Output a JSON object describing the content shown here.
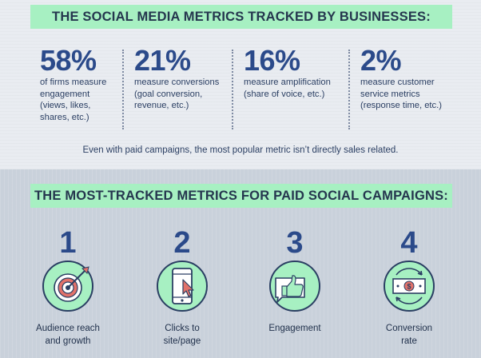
{
  "section1": {
    "title": "THE SOCIAL MEDIA METRICS TRACKED BY BUSINESSES:",
    "stats": [
      {
        "percent": "58%",
        "line1": "of firms measure",
        "line2": "engagement",
        "line3": "(views, likes,",
        "line4": "shares, etc.)"
      },
      {
        "percent": "21%",
        "line1": "measure conversions",
        "line2": "(goal conversion,",
        "line3": "revenue, etc.)"
      },
      {
        "percent": "16%",
        "line1": "measure amplification",
        "line2": "(share of voice, etc.)"
      },
      {
        "percent": "2%",
        "line1": "measure customer",
        "line2": "service metrics",
        "line3": "(response time, etc.)"
      }
    ],
    "note": "Even with paid campaigns, the most popular metric isn’t directly sales related."
  },
  "section2": {
    "title": "THE MOST-TRACKED METRICS FOR PAID SOCIAL CAMPAIGNS:",
    "items": [
      {
        "number": "1",
        "line1": "Audience reach",
        "line2": "and growth",
        "icon": "target-icon"
      },
      {
        "number": "2",
        "line1": "Clicks to",
        "line2": "site/page",
        "icon": "phone-click-icon"
      },
      {
        "number": "3",
        "line1": "Engagement",
        "line2": "",
        "icon": "thumbs-up-icon"
      },
      {
        "number": "4",
        "line1": "Conversion",
        "line2": "rate",
        "icon": "money-cycle-icon"
      }
    ]
  },
  "colors": {
    "accent_green": "#a7f0c2",
    "navy": "#2b4a8a",
    "dark_text": "#2b3f63",
    "target_red": "#e2726a"
  }
}
